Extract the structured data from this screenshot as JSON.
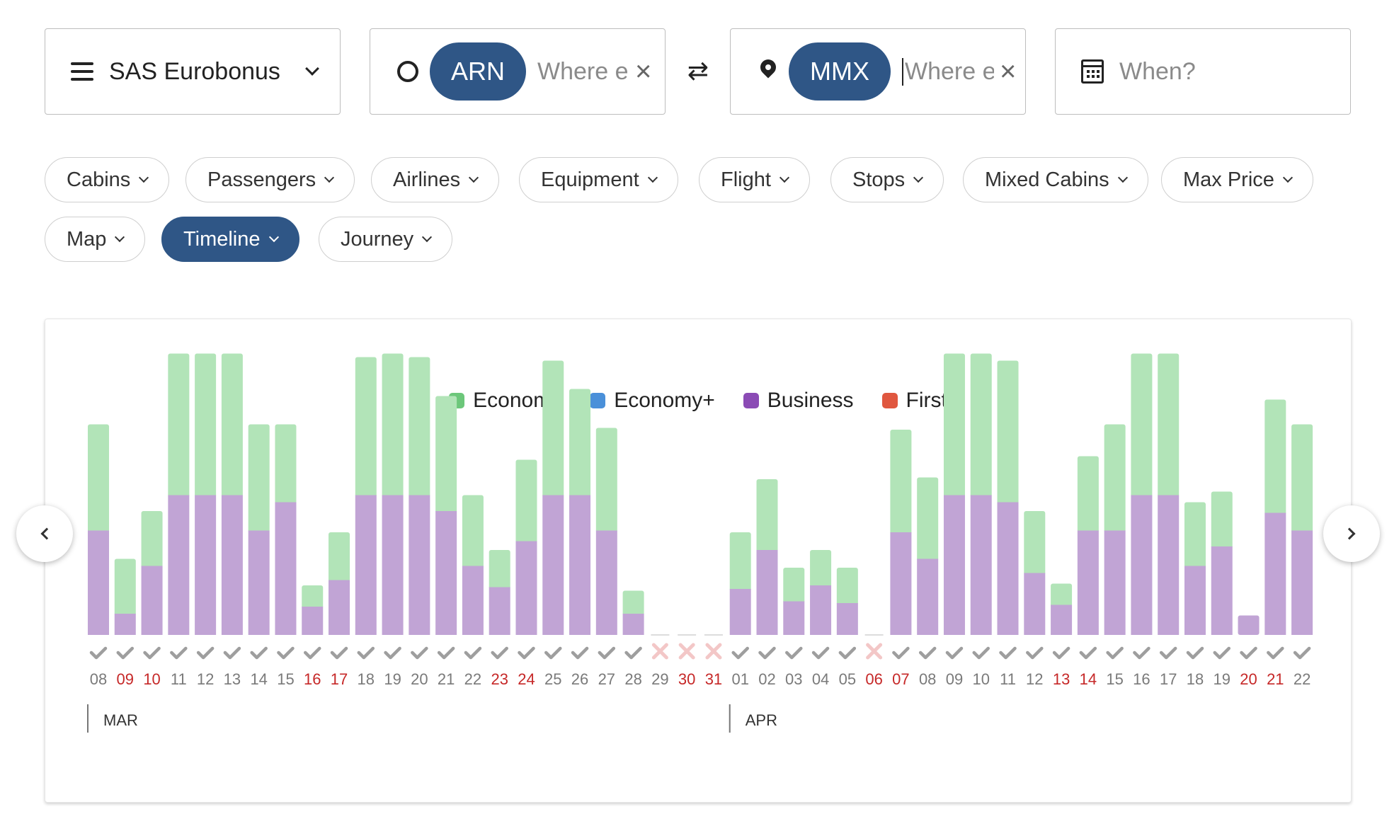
{
  "search": {
    "program": "SAS Eurobonus",
    "origin_code": "ARN",
    "origin_placeholder": "Where else?",
    "destination_code": "MMX",
    "destination_placeholder": "Where else?",
    "when_placeholder": "When?"
  },
  "filters": [
    "Cabins",
    "Passengers",
    "Airlines",
    "Equipment",
    "Flight",
    "Stops",
    "Mixed Cabins",
    "Max Price"
  ],
  "views": {
    "items": [
      "Map",
      "Timeline",
      "Journey"
    ],
    "active": "Timeline"
  },
  "legend": [
    {
      "name": "Economy",
      "color": "#6cc77a"
    },
    {
      "name": "Economy+",
      "color": "#4a90d9"
    },
    {
      "name": "Business",
      "color": "#8b4bb5"
    },
    {
      "name": "First",
      "color": "#e0573f"
    }
  ],
  "colors": {
    "economy_bar": "#b2e4b8",
    "business_bar": "#c1a4d5",
    "check": "#9e9e9e",
    "cross": "#f3c7c7",
    "weekend": "#c62828",
    "weekday": "#7a7a7a"
  },
  "chart_data": {
    "type": "bar",
    "stacked": true,
    "months": [
      {
        "label": "MAR",
        "start_day": "08"
      },
      {
        "label": "APR",
        "start_day": "01"
      }
    ],
    "days": [
      {
        "day": "08",
        "business": 59,
        "economy": 60,
        "available": true,
        "weekend": false
      },
      {
        "day": "09",
        "business": 12,
        "economy": 31,
        "available": true,
        "weekend": true
      },
      {
        "day": "10",
        "business": 39,
        "economy": 31,
        "available": true,
        "weekend": true
      },
      {
        "day": "11",
        "business": 79,
        "economy": 80,
        "available": true,
        "weekend": false
      },
      {
        "day": "12",
        "business": 79,
        "economy": 80,
        "available": true,
        "weekend": false
      },
      {
        "day": "13",
        "business": 79,
        "economy": 80,
        "available": true,
        "weekend": false
      },
      {
        "day": "14",
        "business": 59,
        "economy": 60,
        "available": true,
        "weekend": false
      },
      {
        "day": "15",
        "business": 75,
        "economy": 44,
        "available": true,
        "weekend": false
      },
      {
        "day": "16",
        "business": 16,
        "economy": 12,
        "available": true,
        "weekend": true
      },
      {
        "day": "17",
        "business": 31,
        "economy": 27,
        "available": true,
        "weekend": true
      },
      {
        "day": "18",
        "business": 79,
        "economy": 78,
        "available": true,
        "weekend": false
      },
      {
        "day": "19",
        "business": 79,
        "economy": 80,
        "available": true,
        "weekend": false
      },
      {
        "day": "20",
        "business": 79,
        "economy": 78,
        "available": true,
        "weekend": false
      },
      {
        "day": "21",
        "business": 70,
        "economy": 65,
        "available": true,
        "weekend": false
      },
      {
        "day": "22",
        "business": 39,
        "economy": 40,
        "available": true,
        "weekend": false
      },
      {
        "day": "23",
        "business": 27,
        "economy": 21,
        "available": true,
        "weekend": true
      },
      {
        "day": "24",
        "business": 53,
        "economy": 46,
        "available": true,
        "weekend": true
      },
      {
        "day": "25",
        "business": 79,
        "economy": 76,
        "available": true,
        "weekend": false
      },
      {
        "day": "26",
        "business": 79,
        "economy": 60,
        "available": true,
        "weekend": false
      },
      {
        "day": "27",
        "business": 59,
        "economy": 58,
        "available": true,
        "weekend": false
      },
      {
        "day": "28",
        "business": 12,
        "economy": 13,
        "available": true,
        "weekend": false
      },
      {
        "day": "29",
        "business": 0,
        "economy": 0,
        "available": false,
        "weekend": false
      },
      {
        "day": "30",
        "business": 0,
        "economy": 0,
        "available": false,
        "weekend": true
      },
      {
        "day": "31",
        "business": 0,
        "economy": 0,
        "available": false,
        "weekend": true
      },
      {
        "day": "01",
        "business": 26,
        "economy": 32,
        "available": true,
        "weekend": false
      },
      {
        "day": "02",
        "business": 48,
        "economy": 40,
        "available": true,
        "weekend": false
      },
      {
        "day": "03",
        "business": 19,
        "economy": 19,
        "available": true,
        "weekend": false
      },
      {
        "day": "04",
        "business": 28,
        "economy": 20,
        "available": true,
        "weekend": false
      },
      {
        "day": "05",
        "business": 18,
        "economy": 20,
        "available": true,
        "weekend": false
      },
      {
        "day": "06",
        "business": 0,
        "economy": 0,
        "available": false,
        "weekend": true
      },
      {
        "day": "07",
        "business": 58,
        "economy": 58,
        "available": true,
        "weekend": true
      },
      {
        "day": "08",
        "business": 43,
        "economy": 46,
        "available": true,
        "weekend": false
      },
      {
        "day": "09",
        "business": 79,
        "economy": 80,
        "available": true,
        "weekend": false
      },
      {
        "day": "10",
        "business": 79,
        "economy": 80,
        "available": true,
        "weekend": false
      },
      {
        "day": "11",
        "business": 75,
        "economy": 80,
        "available": true,
        "weekend": false
      },
      {
        "day": "12",
        "business": 35,
        "economy": 35,
        "available": true,
        "weekend": false
      },
      {
        "day": "13",
        "business": 17,
        "economy": 12,
        "available": true,
        "weekend": true
      },
      {
        "day": "14",
        "business": 59,
        "economy": 42,
        "available": true,
        "weekend": true
      },
      {
        "day": "15",
        "business": 59,
        "economy": 60,
        "available": true,
        "weekend": false
      },
      {
        "day": "16",
        "business": 79,
        "economy": 80,
        "available": true,
        "weekend": false
      },
      {
        "day": "17",
        "business": 79,
        "economy": 80,
        "available": true,
        "weekend": false
      },
      {
        "day": "18",
        "business": 39,
        "economy": 36,
        "available": true,
        "weekend": false
      },
      {
        "day": "19",
        "business": 50,
        "economy": 31,
        "available": true,
        "weekend": false
      },
      {
        "day": "20",
        "business": 11,
        "economy": 0,
        "available": true,
        "weekend": true
      },
      {
        "day": "21",
        "business": 69,
        "economy": 64,
        "available": true,
        "weekend": true
      },
      {
        "day": "22",
        "business": 59,
        "economy": 60,
        "available": true,
        "weekend": false
      }
    ]
  }
}
